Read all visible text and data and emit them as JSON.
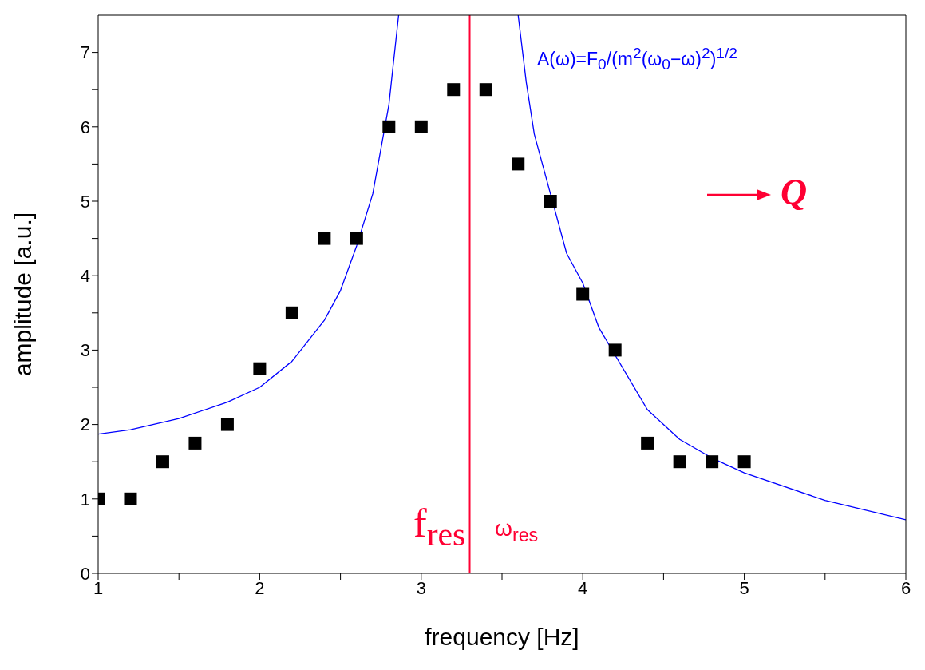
{
  "chart_data": {
    "type": "scatter",
    "xlabel": "frequency [Hz]",
    "ylabel": "amplitude [a.u.]",
    "xlim": [
      1,
      6
    ],
    "ylim": [
      0,
      7.5
    ],
    "xticks": [
      1,
      {
        "value": 1.5,
        "label": null
      },
      2,
      {
        "value": 2.5,
        "label": null
      },
      3,
      {
        "value": 3.5,
        "label": null
      },
      4,
      {
        "value": 4.5,
        "label": null
      },
      5,
      {
        "value": 5.5,
        "label": null
      },
      6
    ],
    "yticks": [
      0,
      {
        "value": 0.5,
        "label": null
      },
      1,
      {
        "value": 1.5,
        "label": null
      },
      2,
      {
        "value": 2.5,
        "label": null
      },
      3,
      {
        "value": 3.5,
        "label": null
      },
      4,
      {
        "value": 4.5,
        "label": null
      },
      5,
      {
        "value": 5.5,
        "label": null
      },
      6,
      {
        "value": 6.5,
        "label": null
      },
      7
    ],
    "grid": false,
    "legend": false,
    "marker": "square",
    "series": [
      {
        "color": "#000000",
        "x": [
          1,
          1.2,
          1.4,
          1.6,
          1.8,
          2,
          2.2,
          2.4,
          2.6,
          2.8,
          3,
          3.2,
          3.4,
          3.6,
          3.8,
          4,
          4.2,
          4.4,
          4.6,
          4.8,
          5
        ],
        "values": [
          1,
          1,
          1.5,
          1.75,
          2,
          2.75,
          3.5,
          4.5,
          4.5,
          6,
          6,
          6.5,
          6.5,
          5.5,
          5,
          3.75,
          3,
          1.75,
          1.5,
          1.5,
          1.5
        ]
      },
      {
        "type": "line",
        "color": "#0000ff",
        "marker": "none",
        "x": [
          1,
          1.2,
          1.5,
          1.8,
          2,
          2.2,
          2.4,
          2.5,
          2.6,
          2.7,
          2.8,
          2.86
        ],
        "values": [
          1.87,
          1.93,
          2.08,
          2.3,
          2.5,
          2.85,
          3.4,
          3.8,
          4.4,
          5.1,
          6.3,
          7.5
        ]
      },
      {
        "type": "line",
        "color": "#0000ff",
        "marker": "none",
        "x": [
          3.6,
          3.65,
          3.7,
          3.9,
          4,
          4.1,
          4.4,
          4.6,
          4.8,
          5,
          5.5,
          6
        ],
        "values": [
          7.5,
          6.6,
          5.9,
          4.3,
          3.9,
          3.3,
          2.2,
          1.8,
          1.55,
          1.35,
          0.98,
          0.72
        ]
      }
    ],
    "ref_lines": [
      {
        "axis": "x",
        "value": 3.3,
        "color": "#ff0033"
      }
    ],
    "annotations": [
      "A(ω)=F$_{0}$/(m$^{2}$(ω$_{0}$−ω)$^{2}$)$^{1/2}$",
      "Q",
      "f$_{res}$",
      "ω$_{res}$"
    ]
  }
}
